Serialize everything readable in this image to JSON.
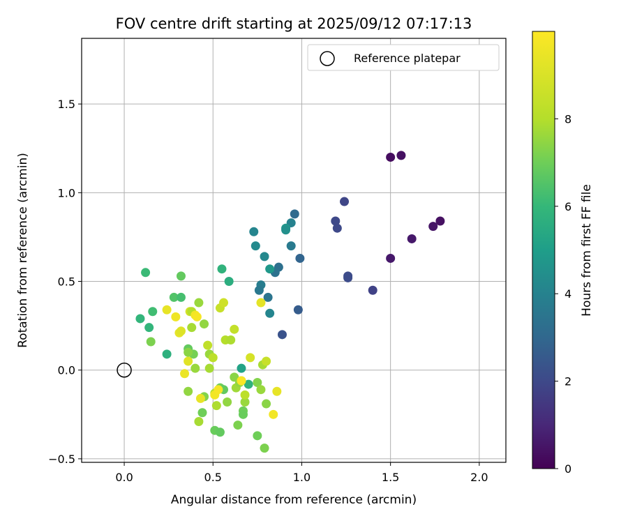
{
  "chart_data": {
    "type": "scatter",
    "title": "FOV centre drift starting at 2025/09/12 07:17:13",
    "xlabel": "Angular distance from reference (arcmin)",
    "ylabel": "Rotation from reference (arcmin)",
    "xlim": [
      -0.24,
      2.15
    ],
    "ylim": [
      -0.52,
      1.87
    ],
    "xticks": [
      0.0,
      0.5,
      1.0,
      1.5,
      2.0
    ],
    "xtick_labels": [
      "0.0",
      "0.5",
      "1.0",
      "1.5",
      "2.0"
    ],
    "yticks": [
      -0.5,
      0.0,
      0.5,
      1.0,
      1.5
    ],
    "ytick_labels": [
      "−0.5",
      "0.0",
      "0.5",
      "1.0",
      "1.5"
    ],
    "grid": true,
    "legend": {
      "label": "Reference platepar",
      "placement": "top-right"
    },
    "reference_point": {
      "x": 0.0,
      "y": 0.0
    },
    "colorbar": {
      "label": "Hours from first FF file",
      "colormap": "viridis",
      "range": [
        0,
        10
      ],
      "ticks": [
        0,
        2,
        4,
        6,
        8
      ],
      "tick_labels": [
        "0",
        "2",
        "4",
        "6",
        "8"
      ]
    },
    "points": [
      {
        "x": 1.5,
        "y": 1.2,
        "c": 0.3
      },
      {
        "x": 1.56,
        "y": 1.21,
        "c": 0.4
      },
      {
        "x": 1.78,
        "y": 0.84,
        "c": 0.4
      },
      {
        "x": 1.74,
        "y": 0.81,
        "c": 0.5
      },
      {
        "x": 1.62,
        "y": 0.74,
        "c": 0.6
      },
      {
        "x": 1.5,
        "y": 0.63,
        "c": 0.6
      },
      {
        "x": 1.4,
        "y": 0.45,
        "c": 1.8
      },
      {
        "x": 1.26,
        "y": 0.53,
        "c": 2.1
      },
      {
        "x": 1.26,
        "y": 0.52,
        "c": 2.1
      },
      {
        "x": 1.24,
        "y": 0.95,
        "c": 1.9
      },
      {
        "x": 1.19,
        "y": 0.84,
        "c": 2.0
      },
      {
        "x": 1.2,
        "y": 0.8,
        "c": 2.0
      },
      {
        "x": 0.99,
        "y": 0.63,
        "c": 2.9
      },
      {
        "x": 0.96,
        "y": 0.88,
        "c": 3.1
      },
      {
        "x": 0.98,
        "y": 0.34,
        "c": 2.6
      },
      {
        "x": 0.89,
        "y": 0.2,
        "c": 2.3
      },
      {
        "x": 0.87,
        "y": 0.58,
        "c": 3.3
      },
      {
        "x": 0.85,
        "y": 0.55,
        "c": 3.4
      },
      {
        "x": 0.94,
        "y": 0.83,
        "c": 4.0
      },
      {
        "x": 0.94,
        "y": 0.7,
        "c": 3.7
      },
      {
        "x": 0.91,
        "y": 0.8,
        "c": 4.7
      },
      {
        "x": 0.91,
        "y": 0.79,
        "c": 4.5
      },
      {
        "x": 0.73,
        "y": 0.78,
        "c": 4.1
      },
      {
        "x": 0.74,
        "y": 0.7,
        "c": 4.3
      },
      {
        "x": 0.79,
        "y": 0.64,
        "c": 4.2
      },
      {
        "x": 0.82,
        "y": 0.57,
        "c": 4.8
      },
      {
        "x": 0.77,
        "y": 0.48,
        "c": 3.8
      },
      {
        "x": 0.76,
        "y": 0.45,
        "c": 3.6
      },
      {
        "x": 0.81,
        "y": 0.41,
        "c": 3.5
      },
      {
        "x": 0.82,
        "y": 0.32,
        "c": 4.1
      },
      {
        "x": 0.55,
        "y": 0.57,
        "c": 5.8
      },
      {
        "x": 0.59,
        "y": 0.5,
        "c": 5.6
      },
      {
        "x": 0.66,
        "y": 0.01,
        "c": 5.2
      },
      {
        "x": 0.7,
        "y": -0.08,
        "c": 5.8
      },
      {
        "x": 0.12,
        "y": 0.55,
        "c": 6.1
      },
      {
        "x": 0.32,
        "y": 0.53,
        "c": 6.8
      },
      {
        "x": 0.28,
        "y": 0.41,
        "c": 6.5
      },
      {
        "x": 0.32,
        "y": 0.41,
        "c": 6.3
      },
      {
        "x": 0.16,
        "y": 0.33,
        "c": 6.2
      },
      {
        "x": 0.09,
        "y": 0.29,
        "c": 5.9
      },
      {
        "x": 0.14,
        "y": 0.24,
        "c": 5.9
      },
      {
        "x": 0.24,
        "y": 0.09,
        "c": 5.7
      },
      {
        "x": 0.15,
        "y": 0.16,
        "c": 7.2
      },
      {
        "x": 0.37,
        "y": 0.33,
        "c": 8.8
      },
      {
        "x": 0.38,
        "y": 0.33,
        "c": 8.0
      },
      {
        "x": 0.42,
        "y": 0.38,
        "c": 7.6
      },
      {
        "x": 0.45,
        "y": 0.26,
        "c": 7.5
      },
      {
        "x": 0.38,
        "y": 0.24,
        "c": 7.8
      },
      {
        "x": 0.36,
        "y": 0.12,
        "c": 6.8
      },
      {
        "x": 0.39,
        "y": 0.09,
        "c": 7.1
      },
      {
        "x": 0.36,
        "y": 0.1,
        "c": 7.4
      },
      {
        "x": 0.4,
        "y": 0.01,
        "c": 7.6
      },
      {
        "x": 0.47,
        "y": 0.14,
        "c": 8.3
      },
      {
        "x": 0.48,
        "y": 0.09,
        "c": 7.6
      },
      {
        "x": 0.48,
        "y": 0.01,
        "c": 7.8
      },
      {
        "x": 0.5,
        "y": 0.07,
        "c": 8.2
      },
      {
        "x": 0.54,
        "y": 0.35,
        "c": 8.5
      },
      {
        "x": 0.56,
        "y": 0.38,
        "c": 8.7
      },
      {
        "x": 0.57,
        "y": 0.17,
        "c": 8.0
      },
      {
        "x": 0.6,
        "y": 0.17,
        "c": 7.9
      },
      {
        "x": 0.62,
        "y": 0.23,
        "c": 8.4
      },
      {
        "x": 0.62,
        "y": -0.04,
        "c": 7.4
      },
      {
        "x": 0.63,
        "y": -0.1,
        "c": 7.7
      },
      {
        "x": 0.65,
        "y": -0.07,
        "c": 7.5
      },
      {
        "x": 0.54,
        "y": -0.1,
        "c": 7.0
      },
      {
        "x": 0.56,
        "y": -0.11,
        "c": 6.8
      },
      {
        "x": 0.51,
        "y": -0.13,
        "c": 8.0
      },
      {
        "x": 0.52,
        "y": -0.2,
        "c": 7.9
      },
      {
        "x": 0.58,
        "y": -0.18,
        "c": 7.5
      },
      {
        "x": 0.44,
        "y": -0.24,
        "c": 7.0
      },
      {
        "x": 0.45,
        "y": -0.15,
        "c": 7.3
      },
      {
        "x": 0.42,
        "y": -0.29,
        "c": 7.8
      },
      {
        "x": 0.51,
        "y": -0.34,
        "c": 6.9
      },
      {
        "x": 0.54,
        "y": -0.35,
        "c": 6.8
      },
      {
        "x": 0.64,
        "y": -0.31,
        "c": 7.2
      },
      {
        "x": 0.67,
        "y": -0.23,
        "c": 7.0
      },
      {
        "x": 0.67,
        "y": -0.25,
        "c": 6.9
      },
      {
        "x": 0.68,
        "y": -0.18,
        "c": 7.6
      },
      {
        "x": 0.68,
        "y": -0.14,
        "c": 8.2
      },
      {
        "x": 0.66,
        "y": -0.06,
        "c": 8.6
      },
      {
        "x": 0.71,
        "y": 0.07,
        "c": 8.9
      },
      {
        "x": 0.75,
        "y": -0.07,
        "c": 7.3
      },
      {
        "x": 0.77,
        "y": -0.11,
        "c": 7.6
      },
      {
        "x": 0.78,
        "y": 0.03,
        "c": 7.8
      },
      {
        "x": 0.8,
        "y": 0.05,
        "c": 8.5
      },
      {
        "x": 0.8,
        "y": -0.19,
        "c": 7.4
      },
      {
        "x": 0.75,
        "y": -0.37,
        "c": 7.0
      },
      {
        "x": 0.79,
        "y": -0.44,
        "c": 7.2
      },
      {
        "x": 0.36,
        "y": -0.12,
        "c": 7.5
      },
      {
        "x": 0.24,
        "y": 0.34,
        "c": 9.4
      },
      {
        "x": 0.29,
        "y": 0.3,
        "c": 9.6
      },
      {
        "x": 0.31,
        "y": 0.21,
        "c": 9.3
      },
      {
        "x": 0.32,
        "y": 0.22,
        "c": 9.1
      },
      {
        "x": 0.4,
        "y": 0.31,
        "c": 9.7
      },
      {
        "x": 0.41,
        "y": 0.3,
        "c": 9.8
      },
      {
        "x": 0.36,
        "y": 0.05,
        "c": 9.2
      },
      {
        "x": 0.34,
        "y": -0.02,
        "c": 9.5
      },
      {
        "x": 0.43,
        "y": -0.16,
        "c": 9.4
      },
      {
        "x": 0.51,
        "y": -0.14,
        "c": 9.7
      },
      {
        "x": 0.53,
        "y": -0.11,
        "c": 9.8
      },
      {
        "x": 0.66,
        "y": -0.06,
        "c": 9.9
      },
      {
        "x": 0.77,
        "y": 0.38,
        "c": 9.3
      },
      {
        "x": 0.84,
        "y": -0.25,
        "c": 9.7
      },
      {
        "x": 0.86,
        "y": -0.12,
        "c": 9.4
      }
    ]
  }
}
